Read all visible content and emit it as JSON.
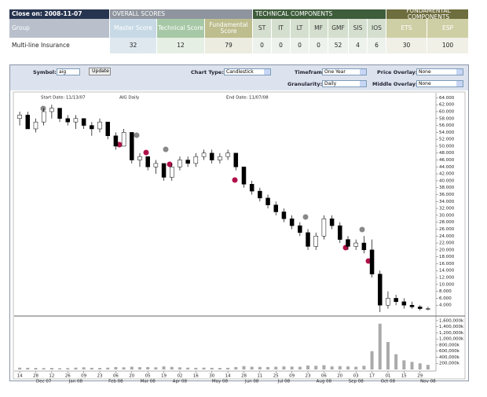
{
  "header_table": {
    "close_on": "Close on: 2008-11-07",
    "groups": [
      "OVERALL SCORES",
      "TECHNICAL COMPONENTS",
      "FUNDAMENTAL COMPONENTS"
    ],
    "columns": [
      "Group",
      "Master Score",
      "Technical Score",
      "Fundamental Score",
      "ST",
      "IT",
      "LT",
      "MF",
      "GMF",
      "SIS",
      "IOS",
      "ETS",
      "ESP"
    ],
    "row": [
      "Multi-line Insurance",
      32,
      12,
      79,
      0,
      0,
      0,
      0,
      52,
      4,
      6,
      30,
      100
    ]
  },
  "controls": {
    "symbol_label": "Symbol:",
    "symbol": "aig",
    "update": "Update",
    "chart_type_label": "Chart Type:",
    "chart_type": "Candlestick",
    "timeframe_label": "Timeframe:",
    "timeframe": "One Year",
    "granularity_label": "Granularity:",
    "granularity": "Daily",
    "price_overlay_label": "Price Overlay:",
    "price_overlay": "None",
    "middle_overlay_label": "Middle Overlay:",
    "middle_overlay": "None"
  },
  "chart_data": {
    "type": "candlestick",
    "title": "AIG Daily",
    "start_date": "Start Date: 11/13/07",
    "end_date": "End Date: 11/07/08",
    "categories": [
      "14",
      null,
      "28",
      null,
      "12",
      null,
      "26",
      null,
      "09",
      null,
      "23",
      null,
      "06",
      null,
      "20",
      null,
      "05",
      null,
      "19",
      null,
      "02",
      null,
      "16",
      null,
      "30",
      null,
      "14",
      null,
      "28",
      null,
      "11",
      null,
      "25",
      null,
      "09",
      null,
      "23",
      null,
      "06",
      null,
      "20",
      null,
      "03",
      null,
      "17",
      null,
      "01",
      null,
      "15",
      null,
      "29",
      null
    ],
    "month_labels": [
      "Dec 07",
      "Jan 08",
      "Feb 08",
      "Mar 08",
      "Apr 08",
      "May 08",
      "Jun 08",
      "Jul 08",
      "Aug 08",
      "Sep 08",
      "Oct 08",
      "Nov 08"
    ],
    "open": [
      58,
      59,
      55,
      57,
      60,
      61,
      58,
      57,
      58,
      56,
      55,
      57,
      53,
      50,
      54,
      46,
      47,
      44,
      45,
      41,
      44,
      46,
      45,
      47,
      48,
      46,
      47,
      48,
      44,
      39,
      37,
      35,
      33,
      31,
      29,
      27,
      25,
      21,
      24,
      29,
      27,
      23,
      21,
      22,
      20,
      13,
      4,
      6,
      5,
      4,
      3.5,
      3
    ],
    "high": [
      60,
      60,
      58,
      61,
      62,
      61,
      59,
      59,
      58,
      57,
      58,
      57,
      54,
      55,
      54,
      48,
      47,
      46,
      45,
      45,
      47,
      47,
      48,
      49,
      49,
      48,
      49,
      48,
      44,
      40,
      38,
      36,
      34,
      32,
      30,
      28,
      26,
      25,
      30,
      30,
      28,
      24,
      23,
      24,
      23,
      14,
      8,
      7,
      6,
      5,
      4,
      3.5
    ],
    "low": [
      56,
      55,
      54,
      56,
      58,
      57,
      56,
      55,
      55,
      53,
      54,
      52,
      49,
      50,
      45,
      44,
      43,
      42,
      40,
      40,
      43,
      44,
      44,
      46,
      45,
      45,
      46,
      43,
      38,
      36,
      34,
      32,
      30,
      28,
      26,
      24,
      20,
      20,
      23,
      26,
      22,
      20,
      20,
      19,
      12,
      2,
      3,
      4,
      3,
      3,
      2.5,
      2.5
    ],
    "close": [
      59,
      55,
      57,
      60,
      61,
      58,
      57,
      58,
      56,
      55,
      57,
      53,
      50,
      54,
      46,
      47,
      44,
      45,
      41,
      44,
      46,
      45,
      47,
      48,
      46,
      47,
      48,
      44,
      39,
      37,
      35,
      33,
      31,
      29,
      27,
      25,
      21,
      24,
      29,
      27,
      23,
      21,
      22,
      20,
      13,
      4,
      6,
      5,
      4,
      3.5,
      3,
      3
    ],
    "ylim": [
      2,
      65
    ],
    "yticks": [
      {
        "value": 4,
        "label": "4.000"
      },
      {
        "value": 6,
        "label": "6.000"
      },
      {
        "value": 8,
        "label": "8.000"
      },
      {
        "value": 10,
        "label": "10.000"
      },
      {
        "value": 12,
        "label": "12.000"
      },
      {
        "value": 14,
        "label": "14.000"
      },
      {
        "value": 16,
        "label": "16.000"
      },
      {
        "value": 18,
        "label": "18.000"
      },
      {
        "value": 20,
        "label": "20.000"
      },
      {
        "value": 22,
        "label": "22.000"
      },
      {
        "value": 24,
        "label": "24.000"
      },
      {
        "value": 26,
        "label": "26.000"
      },
      {
        "value": 28,
        "label": "28.000"
      },
      {
        "value": 30,
        "label": "30.000"
      },
      {
        "value": 32,
        "label": "32.000"
      },
      {
        "value": 34,
        "label": "34.000"
      },
      {
        "value": 36,
        "label": "36.000"
      },
      {
        "value": 38,
        "label": "38.000"
      },
      {
        "value": 40,
        "label": "40.000"
      },
      {
        "value": 42,
        "label": "42.000"
      },
      {
        "value": 44,
        "label": "44.000"
      },
      {
        "value": 46,
        "label": "46.000"
      },
      {
        "value": 48,
        "label": "48.000"
      },
      {
        "value": 50,
        "label": "50.000"
      },
      {
        "value": 52,
        "label": "52.000"
      },
      {
        "value": 54,
        "label": "54.000"
      },
      {
        "value": 56,
        "label": "56.000"
      },
      {
        "value": 58,
        "label": "58.000"
      },
      {
        "value": 60,
        "label": "60.000"
      },
      {
        "value": 62,
        "label": "62.000"
      },
      {
        "value": 64,
        "label": "64.000"
      }
    ],
    "volume": {
      "values": [
        60000,
        55000,
        50000,
        45000,
        50000,
        40000,
        45000,
        60000,
        70000,
        55000,
        50000,
        60000,
        80000,
        70000,
        90000,
        75000,
        80000,
        70000,
        100000,
        85000,
        70000,
        60000,
        55000,
        60000,
        55000,
        50000,
        55000,
        80000,
        110000,
        90000,
        85000,
        80000,
        90000,
        100000,
        95000,
        90000,
        130000,
        120000,
        140000,
        100000,
        110000,
        100000,
        90000,
        120000,
        600000,
        1500000,
        900000,
        500000,
        300000,
        250000,
        200000,
        150000
      ],
      "ylim": [
        0,
        1700000
      ],
      "yticks": [
        {
          "value": 200000,
          "label": "200,000k"
        },
        {
          "value": 400000,
          "label": "400,000k"
        },
        {
          "value": 600000,
          "label": "600,000k"
        },
        {
          "value": 800000,
          "label": "800,000k"
        },
        {
          "value": 1000000,
          "label": "1,000,000k"
        },
        {
          "value": 1200000,
          "label": "1,200,000k"
        },
        {
          "value": 1400000,
          "label": "1,400,000k"
        },
        {
          "value": 1600000,
          "label": "1,600,000k"
        }
      ]
    }
  }
}
